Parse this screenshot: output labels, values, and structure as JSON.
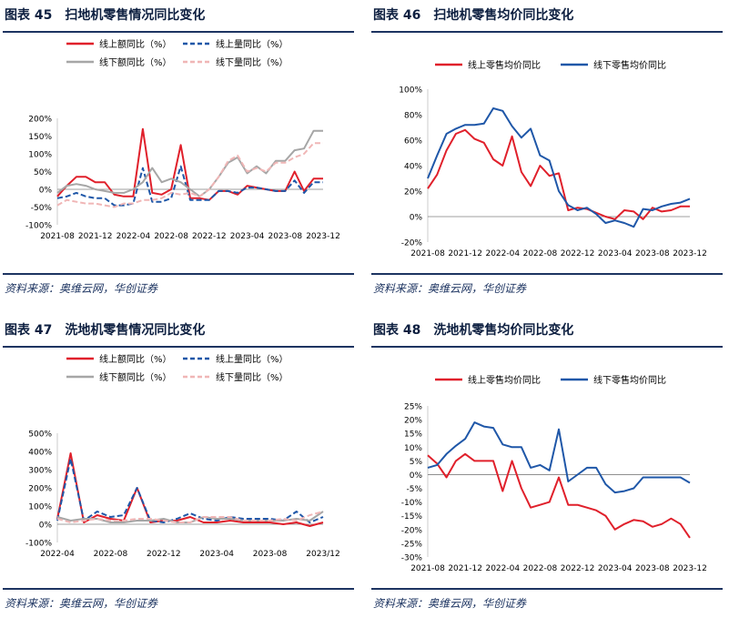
{
  "source_text": "资料来源：奥维云网，华创证券",
  "colors": {
    "red": "#e0202b",
    "blue": "#1f57a8",
    "gray": "#a6a6a6",
    "pink": "#f0b6b6",
    "navy": "#1d3461"
  },
  "figures": [
    {
      "fig_label": "图表 45",
      "title": "扫地机零售情况同比变化"
    },
    {
      "fig_label": "图表 46",
      "title": "扫地机零售均价同比变化"
    },
    {
      "fig_label": "图表 47",
      "title": "洗地机零售情况同比变化"
    },
    {
      "fig_label": "图表 48",
      "title": "洗地机零售均价同比变化"
    }
  ],
  "chart_data": [
    {
      "type": "line",
      "title": "扫地机零售情况同比变化",
      "ylim": [
        -100,
        200
      ],
      "yticks": [
        "-100%",
        "-50%",
        "0%",
        "50%",
        "100%",
        "150%",
        "200%"
      ],
      "ytick_values": [
        -100,
        -50,
        0,
        50,
        100,
        150,
        200
      ],
      "xtick_labels": [
        "2021-08",
        "2021-12",
        "2022-04",
        "2022-08",
        "2022-12",
        "2023-04",
        "2023-08",
        "2023-12"
      ],
      "xtick_index": [
        0,
        4,
        8,
        12,
        16,
        20,
        24,
        28
      ],
      "n": 29,
      "legend_position": "top",
      "series": [
        {
          "name": "线上额同比（%）",
          "style": "red-solid",
          "values": [
            -20,
            10,
            35,
            35,
            20,
            20,
            -15,
            -20,
            -20,
            170,
            -10,
            -15,
            0,
            125,
            -25,
            -25,
            -30,
            -5,
            -5,
            -15,
            10,
            5,
            0,
            -5,
            -5,
            50,
            -5,
            30,
            30
          ]
        },
        {
          "name": "线上量同比（%）",
          "style": "blue-dash",
          "values": [
            -25,
            -20,
            -10,
            -20,
            -25,
            -25,
            -45,
            -45,
            -40,
            60,
            -35,
            -35,
            -25,
            65,
            -30,
            -30,
            -30,
            -5,
            -5,
            -10,
            5,
            5,
            0,
            -5,
            -5,
            25,
            -10,
            20,
            20
          ]
        },
        {
          "name": "线下额同比（%）",
          "style": "gray-solid",
          "values": [
            -10,
            10,
            15,
            10,
            0,
            -5,
            -10,
            -10,
            0,
            20,
            60,
            20,
            30,
            20,
            0,
            -20,
            0,
            35,
            75,
            90,
            45,
            65,
            45,
            80,
            80,
            110,
            115,
            165,
            165
          ]
        },
        {
          "name": "线下量同比（%）",
          "style": "pink-dash",
          "values": [
            -45,
            -30,
            -35,
            -40,
            -40,
            -45,
            -50,
            -40,
            -40,
            -30,
            -30,
            -25,
            -10,
            -15,
            -10,
            -20,
            0,
            35,
            80,
            95,
            50,
            60,
            50,
            75,
            75,
            90,
            100,
            130,
            130
          ]
        }
      ]
    },
    {
      "type": "line",
      "title": "扫地机零售均价同比变化",
      "ylim": [
        -20,
        100
      ],
      "yticks": [
        "-20%",
        "0%",
        "20%",
        "40%",
        "60%",
        "80%",
        "100%"
      ],
      "ytick_values": [
        -20,
        0,
        20,
        40,
        60,
        80,
        100
      ],
      "xtick_labels": [
        "2021-08",
        "2021-12",
        "2022-04",
        "2022-08",
        "2022-12",
        "2023-04",
        "2023-08",
        "2023-12"
      ],
      "xtick_index": [
        0,
        4,
        8,
        12,
        16,
        20,
        24,
        28
      ],
      "n": 29,
      "legend_position": "top",
      "series": [
        {
          "name": "线上零售均价同比",
          "style": "red-solid",
          "values": [
            22,
            33,
            52,
            65,
            68,
            61,
            58,
            45,
            40,
            63,
            35,
            24,
            40,
            32,
            34,
            5,
            7,
            6,
            3,
            0,
            -2,
            5,
            4,
            -2,
            7,
            4,
            5,
            8,
            8
          ]
        },
        {
          "name": "线下零售均价同比",
          "style": "blue-solid",
          "values": [
            30,
            48,
            65,
            69,
            72,
            72,
            73,
            85,
            83,
            71,
            62,
            69,
            48,
            44,
            20,
            9,
            5,
            7,
            2,
            -5,
            -3,
            -5,
            -8,
            6,
            5,
            8,
            10,
            11,
            14
          ]
        }
      ]
    },
    {
      "type": "line",
      "title": "洗地机零售情况同比变化",
      "ylim": [
        -100,
        500
      ],
      "yticks": [
        "-100%",
        "0%",
        "100%",
        "200%",
        "300%",
        "400%",
        "500%"
      ],
      "ytick_values": [
        -100,
        0,
        100,
        200,
        300,
        400,
        500
      ],
      "xtick_labels": [
        "2022-04",
        "2022-08",
        "2022-12",
        "2023-04",
        "2023-08",
        "2023/12"
      ],
      "xtick_index": [
        0,
        4,
        8,
        12,
        16,
        20
      ],
      "n": 21,
      "legend_position": "top",
      "series": [
        {
          "name": "线上额同比（%）",
          "style": "red-solid",
          "values": [
            30,
            390,
            10,
            50,
            30,
            20,
            200,
            10,
            20,
            20,
            40,
            10,
            10,
            20,
            10,
            10,
            10,
            0,
            10,
            -10,
            10
          ]
        },
        {
          "name": "线上量同比（%）",
          "style": "blue-dash",
          "values": [
            20,
            360,
            20,
            70,
            40,
            50,
            200,
            20,
            10,
            30,
            60,
            30,
            20,
            40,
            30,
            30,
            30,
            20,
            70,
            10,
            40
          ]
        },
        {
          "name": "线下额同比（%）",
          "style": "gray-solid",
          "values": [
            40,
            20,
            30,
            30,
            10,
            10,
            20,
            20,
            30,
            10,
            10,
            40,
            30,
            30,
            20,
            20,
            20,
            20,
            30,
            20,
            70
          ]
        },
        {
          "name": "线下量同比（%）",
          "style": "pink-dash",
          "values": [
            30,
            10,
            20,
            30,
            20,
            20,
            30,
            30,
            20,
            10,
            10,
            40,
            40,
            40,
            20,
            20,
            20,
            30,
            20,
            50,
            70
          ]
        }
      ]
    },
    {
      "type": "line",
      "title": "洗地机零售均价同比变化",
      "ylim": [
        -30,
        25
      ],
      "yticks": [
        "-30%",
        "-25%",
        "-20%",
        "-15%",
        "-10%",
        "-5%",
        "0%",
        "5%",
        "10%",
        "15%",
        "20%",
        "25%"
      ],
      "ytick_values": [
        -30,
        -25,
        -20,
        -15,
        -10,
        -5,
        0,
        5,
        10,
        15,
        20,
        25
      ],
      "xtick_labels": [
        "2021-08",
        "2021-12",
        "2022-04",
        "2022-08",
        "2022-12",
        "2023-04",
        "2023-08",
        "2023-12"
      ],
      "xtick_index": [
        0,
        4,
        8,
        12,
        16,
        20,
        24,
        28
      ],
      "n": 29,
      "legend_position": "top",
      "series": [
        {
          "name": "线上零售均价同比",
          "style": "red-solid",
          "values": [
            7,
            4,
            -1,
            5,
            7.5,
            5,
            5,
            5,
            -6,
            5,
            -5,
            -12,
            -11,
            -10,
            -1,
            -11,
            -11,
            -12,
            -13,
            -15,
            -20,
            -18,
            -16.5,
            -17,
            -19,
            -18,
            -16,
            -18,
            -23
          ]
        },
        {
          "name": "线下零售均价同比",
          "style": "blue-solid",
          "values": [
            2.5,
            3.5,
            7.5,
            10.5,
            13,
            19,
            17.5,
            17,
            11,
            10,
            10,
            2.5,
            3.5,
            1.5,
            16.5,
            -2.5,
            0,
            2.5,
            2.5,
            -3.5,
            -6.5,
            -6,
            -5,
            -1,
            -1,
            -1,
            -1,
            -1,
            -3
          ]
        }
      ]
    }
  ]
}
